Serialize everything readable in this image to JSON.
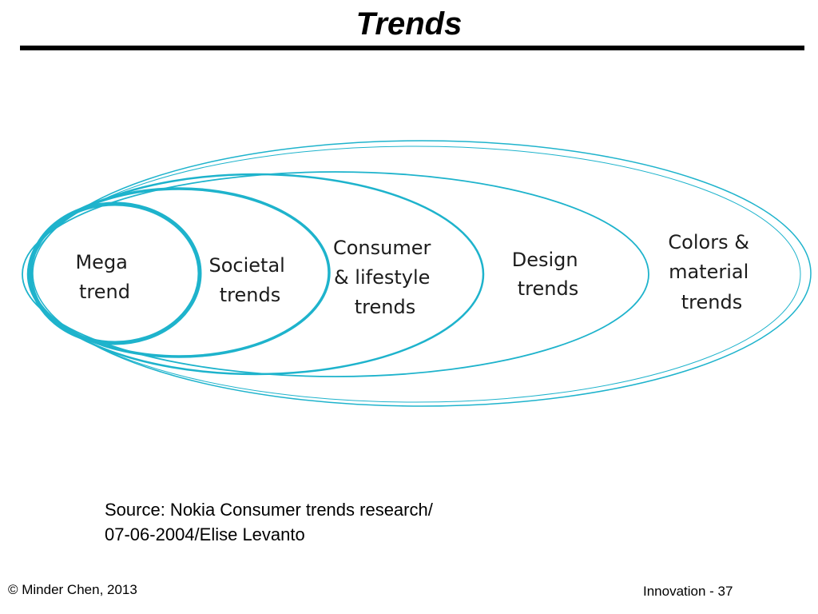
{
  "slide": {
    "title": "Trends"
  },
  "diagram": {
    "ring_color": "#1eb3cc",
    "rings": [
      {
        "id": "mega",
        "lines": [
          "Mega",
          "trend"
        ]
      },
      {
        "id": "societal",
        "lines": [
          "Societal",
          "trends"
        ]
      },
      {
        "id": "consumer",
        "lines": [
          "Consumer",
          "& lifestyle",
          "trends"
        ]
      },
      {
        "id": "design",
        "lines": [
          "Design",
          "trends"
        ]
      },
      {
        "id": "colors",
        "lines": [
          "Colors &",
          "material",
          "trends"
        ]
      }
    ]
  },
  "source": {
    "line1": "Source: Nokia Consumer trends research/",
    "line2": "07-06-2004/Elise Levanto"
  },
  "footer": {
    "copyright": "© Minder Chen, 2013",
    "page": "Innovation - 37"
  }
}
